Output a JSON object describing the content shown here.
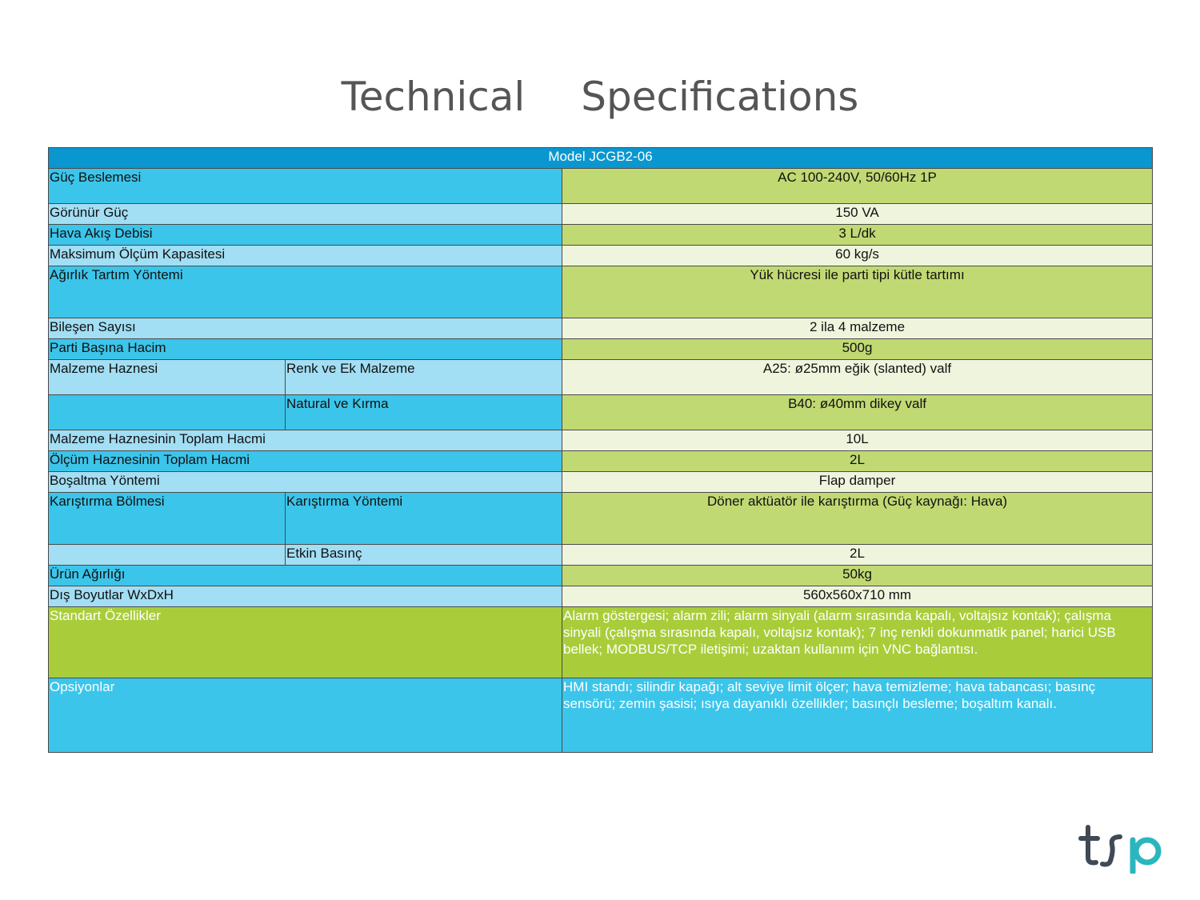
{
  "title": {
    "word1": "Technical",
    "word2": "Specifications"
  },
  "table": {
    "header": "Model JCGB2-06",
    "rows": [
      {
        "label": "Güç Beslemesi",
        "value": "AC 100-240V, 50/60Hz 1P"
      },
      {
        "label": "Görünür Güç",
        "value": "150 VA"
      },
      {
        "label": "Hava Akış Debisi",
        "value": "3 L/dk"
      },
      {
        "label": "Maksimum Ölçüm Kapasitesi",
        "value": "60 kg/s"
      },
      {
        "label": "Ağırlık Tartım Yöntemi",
        "value": "Yük hücresi ile parti tipi kütle tartımı"
      },
      {
        "label": "Bileşen Sayısı",
        "value": "2 ila 4 malzeme"
      },
      {
        "label": "Parti Başına Hacim",
        "value": "500g"
      },
      {
        "label": "Malzeme Haznesi",
        "sub": "Renk ve Ek Malzeme",
        "value": "A25: ø25mm eğik (slanted) valf"
      },
      {
        "label": "",
        "sub": "Natural ve Kırma",
        "value": "B40: ø40mm dikey valf"
      },
      {
        "label": "Malzeme Haznesinin Toplam Hacmi",
        "value": "10L"
      },
      {
        "label": "Ölçüm Haznesinin Toplam Hacmi",
        "value": "2L"
      },
      {
        "label": "Boşaltma Yöntemi",
        "value": "Flap damper"
      },
      {
        "label": "Karıştırma Bölmesi",
        "sub": "Karıştırma Yöntemi",
        "value": "Döner aktüatör ile karıştırma (Güç kaynağı: Hava)"
      },
      {
        "label": "",
        "sub": "Etkin Basınç",
        "value": "2L"
      },
      {
        "label": "Ürün Ağırlığı",
        "value": "50kg"
      },
      {
        "label": "Dış Boyutlar WxDxH",
        "value": "560x560x710 mm"
      },
      {
        "label": "Standart Özellikler",
        "value": "Alarm göstergesi; alarm zili; alarm sinyali (alarm sırasında kapalı, voltajsız kontak); çalışma sinyali (çalışma sırasında kapalı, voltajsız kontak); 7 inç renkli dokunmatik panel; harici USB bellek; MODBUS/TCP iletişimi; uzaktan kullanım için VNC bağlantısı."
      },
      {
        "label": "Opsiyonlar",
        "value": "HMI standı; silindir kapağı; alt seviye limit ölçer; hava temizleme; hava tabancası; basınç sensörü; zemin şasisi; ısıya dayanıklı özellikler; basınçlı besleme; boşaltım kanalı."
      }
    ]
  },
  "logo": {
    "icon": "tsp-logo",
    "colors": {
      "t_s": "#3f4a55",
      "p": "#2bb6bd"
    }
  }
}
